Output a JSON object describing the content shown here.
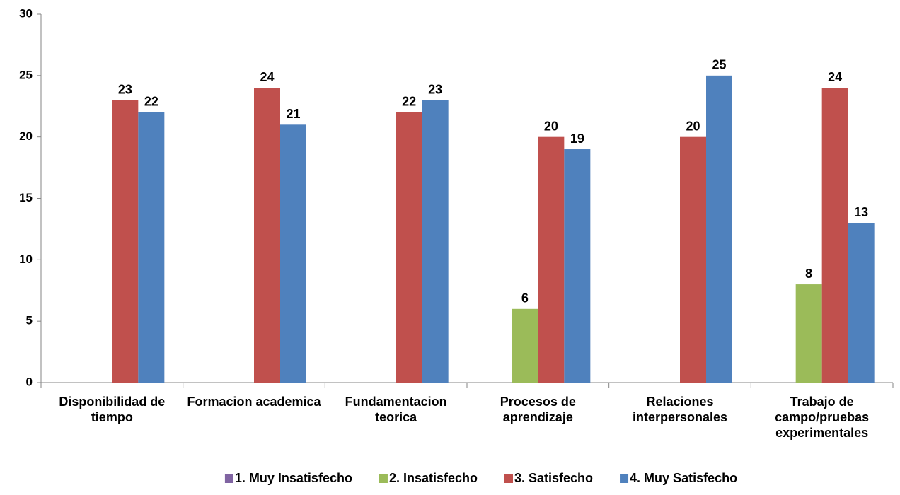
{
  "chart_data": {
    "type": "bar",
    "categories": [
      "Disponibilidad de tiempo",
      "Formacion academica",
      "Fundamentacion teorica",
      "Procesos de aprendizaje",
      "Relaciones interpersonales",
      "Trabajo de campo/pruebas experimentales"
    ],
    "series": [
      {
        "name": "1. Muy Insatisfecho",
        "color": "#8064a2",
        "values": [
          null,
          null,
          null,
          null,
          null,
          null
        ]
      },
      {
        "name": "2. Insatisfecho",
        "color": "#9bbb59",
        "values": [
          null,
          null,
          null,
          6,
          null,
          8
        ]
      },
      {
        "name": "3. Satisfecho",
        "color": "#c0504d",
        "values": [
          23,
          24,
          22,
          20,
          20,
          24
        ]
      },
      {
        "name": "4. Muy Satisfecho",
        "color": "#4f81bd",
        "values": [
          22,
          21,
          23,
          19,
          25,
          13
        ]
      }
    ],
    "ylim": [
      0,
      30
    ],
    "yticks": [
      0,
      5,
      10,
      15,
      20,
      25,
      30
    ],
    "grid": false,
    "legend": "bottom"
  }
}
